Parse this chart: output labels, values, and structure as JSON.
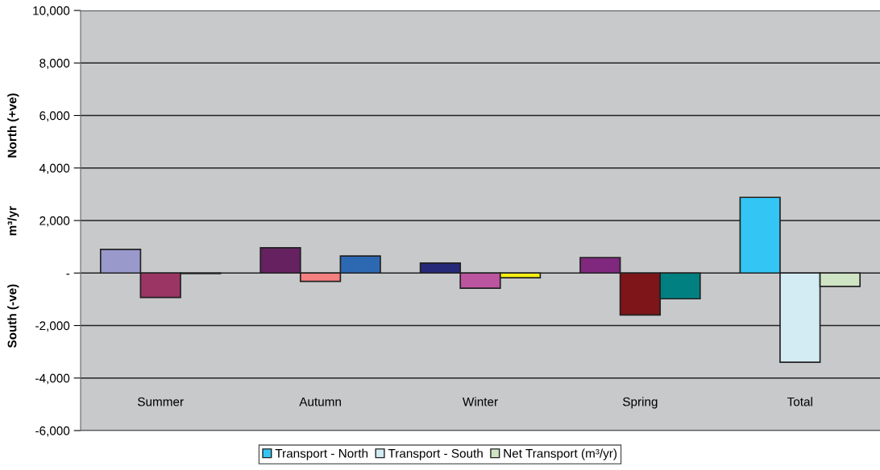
{
  "chart_data": {
    "type": "bar",
    "ylabel": "South (-ve)              m³/yr              North (+ve)",
    "categories": [
      "Summer",
      "Autumn",
      "Winter",
      "Spring",
      "Total"
    ],
    "series": [
      {
        "name": "Transport - North",
        "color": "#33c5f3",
        "colors": [
          "#9999cc",
          "#652160",
          "#262878",
          "#7f287e",
          "#33c5f3"
        ],
        "values": [
          900,
          960,
          380,
          590,
          2880
        ]
      },
      {
        "name": "Transport - South",
        "color": "#d3ebf2",
        "colors": [
          "#9b3564",
          "#f48080",
          "#bb559f",
          "#7e1519",
          "#d3ebf2"
        ],
        "values": [
          -930,
          -320,
          -580,
          -1600,
          -3400
        ]
      },
      {
        "name": "Net Transport (m³/yr)",
        "color": "#cfe4c4",
        "colors": [
          "#3a3a3a",
          "#2d68b3",
          "#f6ee13",
          "#008080",
          "#cfe4c4"
        ],
        "values": [
          -20,
          650,
          -180,
          -980,
          -510
        ]
      }
    ],
    "ylim": [
      -6000,
      10000
    ],
    "yticks": [
      {
        "value": -6000,
        "label": "-6,000"
      },
      {
        "value": -4000,
        "label": "-4,000"
      },
      {
        "value": -2000,
        "label": "-2,000"
      },
      {
        "value": 0,
        "label": "-"
      },
      {
        "value": 2000,
        "label": "2,000"
      },
      {
        "value": 4000,
        "label": "4,000"
      },
      {
        "value": 6000,
        "label": "6,000"
      },
      {
        "value": 8000,
        "label": "8,000"
      },
      {
        "value": 10000,
        "label": "10,000"
      }
    ],
    "grid": "y",
    "legend": "bottom"
  }
}
